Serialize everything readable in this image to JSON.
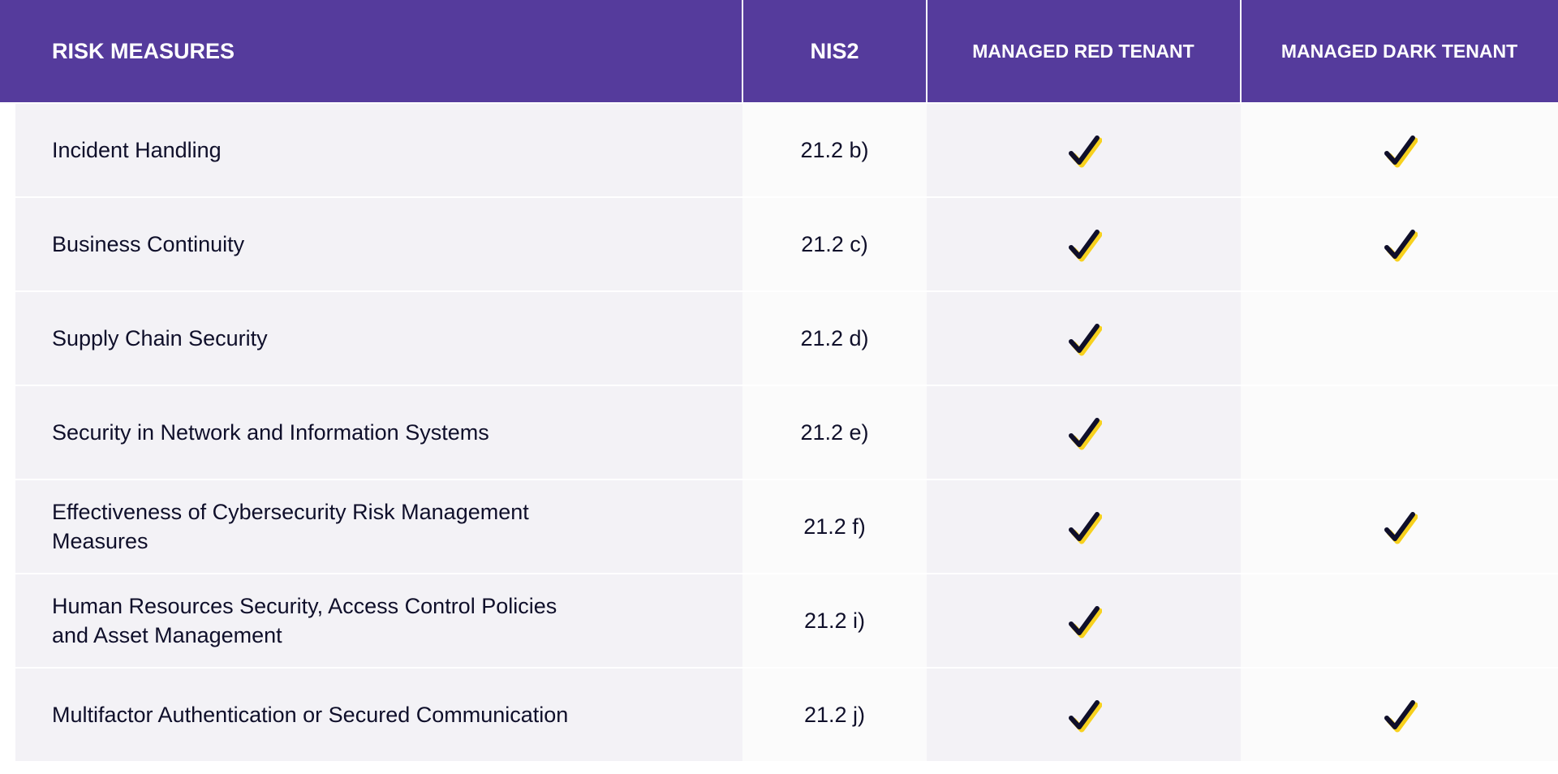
{
  "header": {
    "risk_measures": "RISK MEASURES",
    "nis2": "NIS2",
    "managed_red_tenant": "MANAGED RED TENANT",
    "managed_dark_tenant": "MANAGED DARK TENANT"
  },
  "colors": {
    "header_bg": "#553b9c",
    "row_bg_light": "#f3f2f6",
    "row_bg_white": "#fbfbfb",
    "check_mark": "#0f0f2a",
    "check_highlight": "#f7d11e"
  },
  "rows": [
    {
      "label": "Incident Handling",
      "ref": "21.2 b)",
      "red": true,
      "dark": true
    },
    {
      "label": "Business Continuity",
      "ref": "21.2 c)",
      "red": true,
      "dark": true
    },
    {
      "label": "Supply Chain Security",
      "ref": "21.2 d)",
      "red": true,
      "dark": false
    },
    {
      "label": "Security in Network and Information Systems",
      "ref": "21.2 e)",
      "red": true,
      "dark": false
    },
    {
      "label": "Effectiveness of Cybersecurity Risk Management\nMeasures",
      "ref": "21.2 f)",
      "red": true,
      "dark": true
    },
    {
      "label": "Human Resources Security, Access Control Policies\nand Asset Management",
      "ref": "21.2 i)",
      "red": true,
      "dark": false
    },
    {
      "label": "Multifactor Authentication or Secured Communication",
      "ref": "21.2 j)",
      "red": true,
      "dark": true
    }
  ]
}
